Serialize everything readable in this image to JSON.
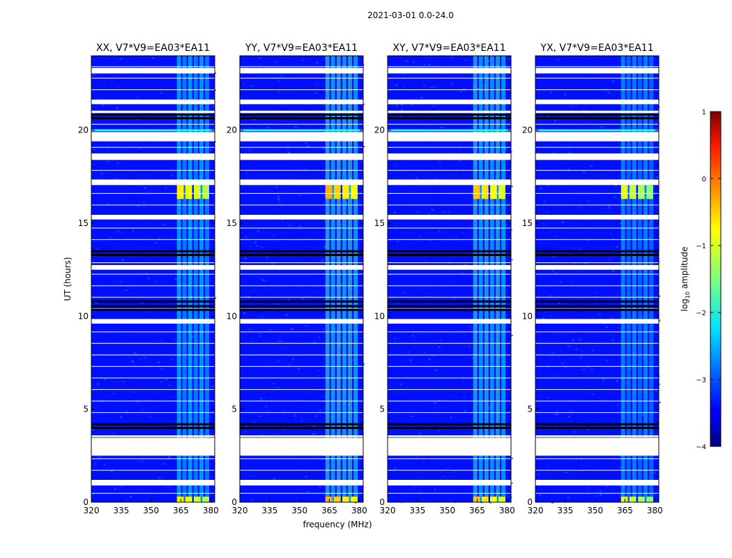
{
  "chart_data": {
    "type": "heatmap",
    "suptitle": "2021-03-01 0.0-24.0",
    "xlabel": "frequency (MHz)",
    "ylabel": "UT (hours)",
    "xlim": [
      320,
      382
    ],
    "ylim": [
      0,
      24
    ],
    "xticks": [
      "320",
      "335",
      "350",
      "365",
      "380"
    ],
    "yticks": [
      "0",
      "5",
      "10",
      "15",
      "20"
    ],
    "colorbar": {
      "label": "log",
      "label_sub": "10",
      "label_suffix": " amplitude",
      "range": [
        -4,
        1
      ],
      "ticks": [
        "1",
        "0",
        "−1",
        "−2",
        "−3",
        "−4"
      ],
      "colormap": "jet"
    },
    "panels": [
      {
        "title": "XX, V7*V9=EA03*EA11",
        "band_level": -0.8
      },
      {
        "title": "YY, V7*V9=EA03*EA11",
        "band_level": -0.5
      },
      {
        "title": "XY, V7*V9=EA03*EA11",
        "band_level": -0.6
      },
      {
        "title": "YX, V7*V9=EA03*EA11",
        "band_level": -1.0
      }
    ],
    "background_level": -3.3,
    "rfi_band_mhz": [
      363,
      380
    ],
    "flagged_hours": [
      [
        23.05,
        23.35
      ],
      [
        21.4,
        21.65
      ],
      [
        20.95,
        21.05
      ],
      [
        19.4,
        19.9
      ],
      [
        18.4,
        18.75
      ],
      [
        17.05,
        17.35
      ],
      [
        15.2,
        15.45
      ],
      [
        12.5,
        12.75
      ],
      [
        9.6,
        9.85
      ],
      [
        3.55,
        3.55
      ],
      [
        2.5,
        3.45
      ],
      [
        0.9,
        1.2
      ]
    ],
    "black_lines_hours": [
      20.9,
      20.7,
      13.55,
      13.35,
      10.85,
      10.6,
      10.4,
      4.25,
      4.05
    ],
    "strong_rfi_hours": [
      [
        16.3,
        17.05
      ],
      [
        0,
        0.3
      ]
    ]
  }
}
